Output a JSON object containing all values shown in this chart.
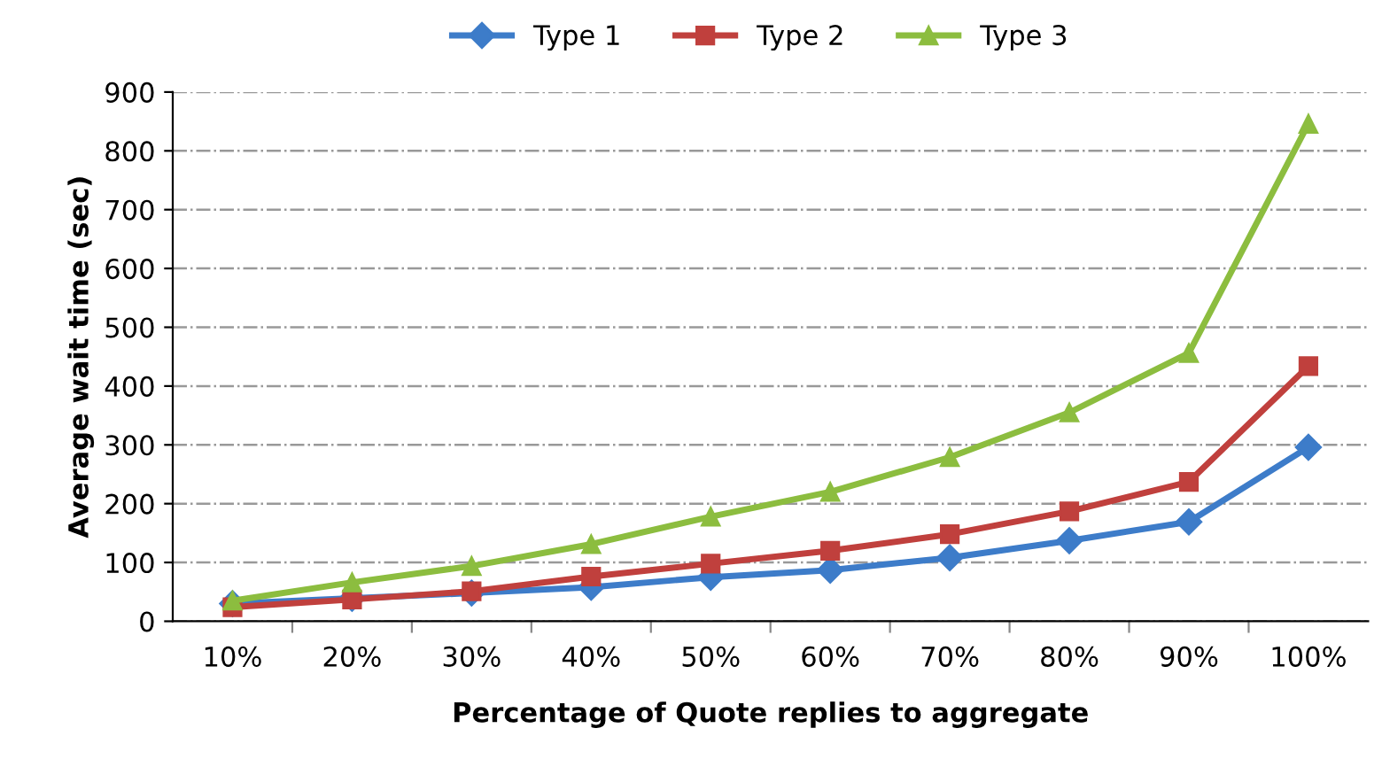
{
  "chart_data": {
    "type": "line",
    "xlabel": "Percentage of Quote replies to aggregate",
    "ylabel": "Average wait time (sec)",
    "categories": [
      "10%",
      "20%",
      "30%",
      "40%",
      "50%",
      "60%",
      "70%",
      "80%",
      "90%",
      "100%"
    ],
    "series": [
      {
        "name": "Type 1",
        "color": "#3d7cc9",
        "marker": "diamond",
        "values": [
          30,
          39,
          48,
          58,
          75,
          87,
          108,
          137,
          169,
          296
        ]
      },
      {
        "name": "Type 2",
        "color": "#c0403d",
        "marker": "square",
        "values": [
          24,
          37,
          51,
          76,
          98,
          120,
          148,
          187,
          237,
          434
        ]
      },
      {
        "name": "Type 3",
        "color": "#8cbd3f",
        "marker": "triangle",
        "values": [
          35,
          66,
          94,
          131,
          178,
          220,
          279,
          355,
          456,
          846
        ]
      }
    ],
    "ylim": [
      0,
      900
    ],
    "yticks": [
      0,
      100,
      200,
      300,
      400,
      500,
      600,
      700,
      800,
      900
    ],
    "grid": "y",
    "legend": "top",
    "line_style": "solid"
  }
}
